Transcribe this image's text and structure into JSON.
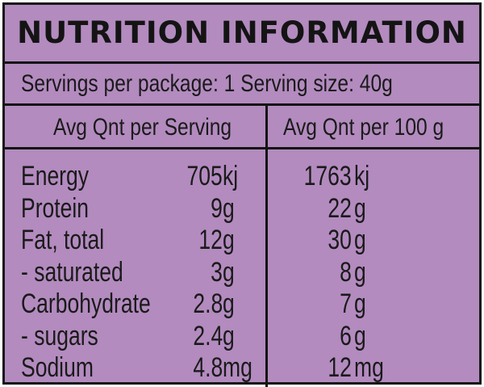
{
  "title": "NUTRITION INFORMATION",
  "servings_line": "Servings per package: 1 Serving size:  40g",
  "headers": {
    "per_serving": "Avg Qnt per Serving",
    "per_100g": "Avg Qnt per 100 g"
  },
  "rows": [
    {
      "label": "Energy",
      "serving_value": "705",
      "serving_unit": "kj",
      "per100_value": "1763",
      "per100_unit": "kj"
    },
    {
      "label": "Protein",
      "serving_value": "9",
      "serving_unit": "g",
      "per100_value": "22",
      "per100_unit": "g"
    },
    {
      "label": "Fat, total",
      "serving_value": "12",
      "serving_unit": "g",
      "per100_value": "30",
      "per100_unit": "g"
    },
    {
      "label": "- saturated",
      "serving_value": "3",
      "serving_unit": "g",
      "per100_value": "8",
      "per100_unit": "g"
    },
    {
      "label": "Carbohydrate",
      "serving_value": "2.8",
      "serving_unit": "g",
      "per100_value": "7",
      "per100_unit": "g"
    },
    {
      "label": "- sugars",
      "serving_value": "2.4",
      "serving_unit": "g",
      "per100_value": "6",
      "per100_unit": "g"
    },
    {
      "label": "Sodium",
      "serving_value": "4.8",
      "serving_unit": "mg",
      "per100_value": "12",
      "per100_unit": "mg"
    }
  ],
  "colors": {
    "background": "#b38bbf",
    "border": "#141414",
    "text": "#1a1a1a"
  }
}
